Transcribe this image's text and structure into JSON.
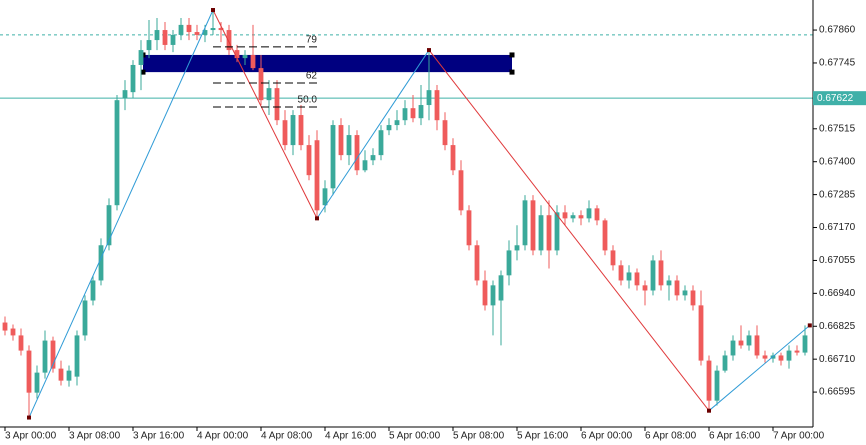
{
  "chart_data": {
    "type": "candlestick",
    "x": [
      0,
      1,
      2,
      3,
      4,
      5,
      6,
      7,
      8,
      9,
      10,
      11,
      12,
      13,
      14,
      15,
      16,
      17,
      18,
      19,
      20,
      21,
      22,
      23,
      24,
      25,
      26,
      27,
      28,
      29,
      30,
      31,
      32,
      33,
      34,
      35,
      36,
      37,
      38,
      39,
      40,
      41,
      42,
      43,
      44,
      45,
      46,
      47,
      48,
      49,
      50,
      51,
      52,
      53,
      54,
      55,
      56,
      57,
      58,
      59,
      60,
      61,
      62,
      63,
      64,
      65,
      66,
      67,
      68,
      69,
      70,
      71,
      72,
      73,
      74,
      75,
      76,
      77,
      78,
      79,
      80,
      81,
      82,
      83,
      84,
      85,
      86,
      87,
      88,
      89,
      90,
      91,
      92,
      93,
      94,
      95,
      96,
      97,
      98,
      99,
      100
    ],
    "open": [
      0.66838,
      0.66817,
      0.66793,
      0.6674,
      0.66593,
      0.66663,
      0.66775,
      0.66677,
      0.66635,
      0.66649,
      0.66793,
      0.66915,
      0.66985,
      0.67108,
      0.67248,
      0.67622,
      0.67643,
      0.67738,
      0.6779,
      0.67825,
      0.6786,
      0.67808,
      0.67843,
      0.67878,
      0.67853,
      0.67843,
      0.6786,
      0.67867,
      0.6786,
      0.6779,
      0.67762,
      0.67773,
      0.67727,
      0.67615,
      0.67657,
      0.67545,
      0.67458,
      0.67563,
      0.67458,
      0.67475,
      0.67248,
      0.67307,
      0.67528,
      0.67423,
      0.67493,
      0.6737,
      0.67405,
      0.67423,
      0.6751,
      0.67528,
      0.67545,
      0.67587,
      0.67552,
      0.67598,
      0.6765,
      0.67545,
      0.67458,
      0.6737,
      0.6723,
      0.67108,
      0.66985,
      0.66898,
      0.66915,
      0.67003,
      0.6709,
      0.67108,
      0.67265,
      0.6709,
      0.67213,
      0.6709,
      0.67223,
      0.67202,
      0.67213,
      0.67202,
      0.67237,
      0.67195,
      0.6709,
      0.67038,
      0.66985,
      0.67013,
      0.66968,
      0.6695,
      0.67055,
      0.66968,
      0.66985,
      0.66933,
      0.6695,
      0.66898,
      0.66705,
      0.66565,
      0.6667,
      0.66723,
      0.66775,
      0.66758,
      0.66793,
      0.66723,
      0.66712,
      0.66723,
      0.66705,
      0.6674,
      0.66733
    ],
    "high": [
      0.66859,
      0.66831,
      0.66817,
      0.66758,
      0.66688,
      0.6681,
      0.66789,
      0.66705,
      0.66688,
      0.6681,
      0.66933,
      0.67003,
      0.67132,
      0.67272,
      0.67633,
      0.67685,
      0.67755,
      0.67825,
      0.67895,
      0.67902,
      0.67888,
      0.6786,
      0.67902,
      0.67902,
      0.67878,
      0.67878,
      0.6793,
      0.67888,
      0.67878,
      0.67808,
      0.6779,
      0.67878,
      0.67773,
      0.67685,
      0.67685,
      0.6758,
      0.6758,
      0.67598,
      0.67493,
      0.6751,
      0.67335,
      0.67545,
      0.67552,
      0.67528,
      0.6751,
      0.6744,
      0.67447,
      0.67528,
      0.67552,
      0.6758,
      0.67615,
      0.67633,
      0.67668,
      0.6779,
      0.67668,
      0.67573,
      0.67482,
      0.67405,
      0.67248,
      0.67125,
      0.6702,
      0.66985,
      0.6702,
      0.67125,
      0.67178,
      0.67283,
      0.67283,
      0.67248,
      0.67265,
      0.67248,
      0.67248,
      0.67223,
      0.6723,
      0.67265,
      0.67248,
      0.67202,
      0.67108,
      0.67055,
      0.67038,
      0.67027,
      0.66985,
      0.67073,
      0.6709,
      0.67003,
      0.67003,
      0.66968,
      0.66968,
      0.6695,
      0.66723,
      0.66688,
      0.6674,
      0.66793,
      0.66828,
      0.6681,
      0.66828,
      0.6674,
      0.66733,
      0.66733,
      0.66758,
      0.66758,
      0.66828
    ],
    "low": [
      0.66793,
      0.66775,
      0.66723,
      0.66506,
      0.66572,
      0.66642,
      0.66663,
      0.66618,
      0.66614,
      0.66618,
      0.66775,
      0.66898,
      0.66968,
      0.6709,
      0.6723,
      0.6758,
      0.67622,
      0.6765,
      0.67762,
      0.6779,
      0.6779,
      0.67783,
      0.67825,
      0.67825,
      0.67825,
      0.67818,
      0.67843,
      0.67818,
      0.67773,
      0.67748,
      0.67738,
      0.6772,
      0.67598,
      0.67563,
      0.67528,
      0.6744,
      0.67423,
      0.6744,
      0.67335,
      0.67202,
      0.67223,
      0.67283,
      0.67405,
      0.67388,
      0.67353,
      0.67363,
      0.67388,
      0.67405,
      0.67493,
      0.6751,
      0.67528,
      0.67538,
      0.67528,
      0.67545,
      0.6751,
      0.6744,
      0.67353,
      0.67213,
      0.6709,
      0.66968,
      0.6688,
      0.66793,
      0.66758,
      0.66968,
      0.67055,
      0.6709,
      0.67073,
      0.67073,
      0.67027,
      0.67073,
      0.67178,
      0.67188,
      0.67178,
      0.67188,
      0.67178,
      0.67073,
      0.6702,
      0.66968,
      0.66957,
      0.6695,
      0.66898,
      0.66933,
      0.6695,
      0.66915,
      0.66915,
      0.66915,
      0.6688,
      0.66688,
      0.6653,
      0.66548,
      0.66663,
      0.66705,
      0.66747,
      0.6674,
      0.66712,
      0.66698,
      0.66698,
      0.66688,
      0.66677,
      0.66723,
      0.66723
    ],
    "close": [
      0.6681,
      0.66793,
      0.6674,
      0.66593,
      0.66663,
      0.66775,
      0.66677,
      0.66635,
      0.6667,
      0.66793,
      0.66915,
      0.66985,
      0.67108,
      0.67248,
      0.67615,
      0.6765,
      0.67738,
      0.6779,
      0.67825,
      0.6786,
      0.67808,
      0.67843,
      0.67878,
      0.67853,
      0.67843,
      0.6786,
      0.67867,
      0.6786,
      0.6779,
      0.67762,
      0.67773,
      0.67727,
      0.67615,
      0.67657,
      0.67545,
      0.67458,
      0.67563,
      0.67458,
      0.67353,
      0.6723,
      0.67307,
      0.67528,
      0.67423,
      0.67493,
      0.6737,
      0.67405,
      0.67423,
      0.6751,
      0.67528,
      0.67545,
      0.67587,
      0.67552,
      0.67598,
      0.6765,
      0.67545,
      0.67458,
      0.6737,
      0.6723,
      0.67108,
      0.66985,
      0.66898,
      0.66968,
      0.67003,
      0.6709,
      0.67108,
      0.67265,
      0.6709,
      0.67213,
      0.6709,
      0.67223,
      0.67202,
      0.67213,
      0.67202,
      0.67237,
      0.67195,
      0.6709,
      0.67038,
      0.66985,
      0.67013,
      0.66968,
      0.6695,
      0.67055,
      0.66968,
      0.66985,
      0.66933,
      0.6695,
      0.66898,
      0.66705,
      0.66565,
      0.6667,
      0.66723,
      0.66775,
      0.66758,
      0.66793,
      0.66723,
      0.66712,
      0.66723,
      0.66705,
      0.6674,
      0.66733,
      0.66793
    ],
    "up_color": "#3aa99a",
    "down_color": "#ef5b5b",
    "xlim": [
      -0.625,
      101
    ],
    "ylim": [
      0.66473,
      0.67965
    ],
    "xticks": [
      {
        "value": 0,
        "label": "3 Apr 00:00"
      },
      {
        "value": 8,
        "label": "3 Apr 08:00"
      },
      {
        "value": 16,
        "label": "3 Apr 16:00"
      },
      {
        "value": 24,
        "label": "4 Apr 00:00"
      },
      {
        "value": 32,
        "label": "4 Apr 08:00"
      },
      {
        "value": 40,
        "label": "4 Apr 16:00"
      },
      {
        "value": 48,
        "label": "5 Apr 00:00"
      },
      {
        "value": 56,
        "label": "5 Apr 08:00"
      },
      {
        "value": 64,
        "label": "5 Apr 16:00"
      },
      {
        "value": 72,
        "label": "6 Apr 00:00"
      },
      {
        "value": 80,
        "label": "6 Apr 08:00"
      },
      {
        "value": 88,
        "label": "6 Apr 16:00"
      },
      {
        "value": 96,
        "label": "7 Apr 00:00"
      }
    ],
    "yticks": [
      {
        "value": 0.6786,
        "label": "0.67860"
      },
      0.67745,
      0.67515,
      {
        "value": 0.674,
        "label": "0.67400"
      },
      0.67285,
      {
        "value": 0.6717,
        "label": "0.67170"
      },
      0.67055,
      {
        "value": 0.6694,
        "label": "0.66940"
      },
      0.66825,
      {
        "value": 0.6671,
        "label": "0.66710"
      },
      0.66595
    ],
    "zigzag": {
      "x": [
        3,
        26,
        39,
        53,
        88,
        100.6
      ],
      "values": [
        0.66506,
        0.6793,
        0.67202,
        0.6779,
        0.6653,
        0.66828
      ],
      "up_color": "#2f9bd6",
      "down_color": "#e0393b"
    },
    "fib_levels": {
      "x": [
        26,
        39
      ],
      "labels": [
        "79",
        "62",
        "50.0"
      ],
      "values": [
        0.67801,
        0.67675,
        0.67591
      ]
    },
    "zone": {
      "x": [
        17.25,
        63.375
      ],
      "values": [
        0.67773,
        0.67713
      ],
      "color": "#000080"
    },
    "dashed_level": {
      "value": 0.67843,
      "color": "#3fb0a8"
    },
    "price_line": {
      "value": 0.67622,
      "color": "#3fb0a8"
    }
  }
}
